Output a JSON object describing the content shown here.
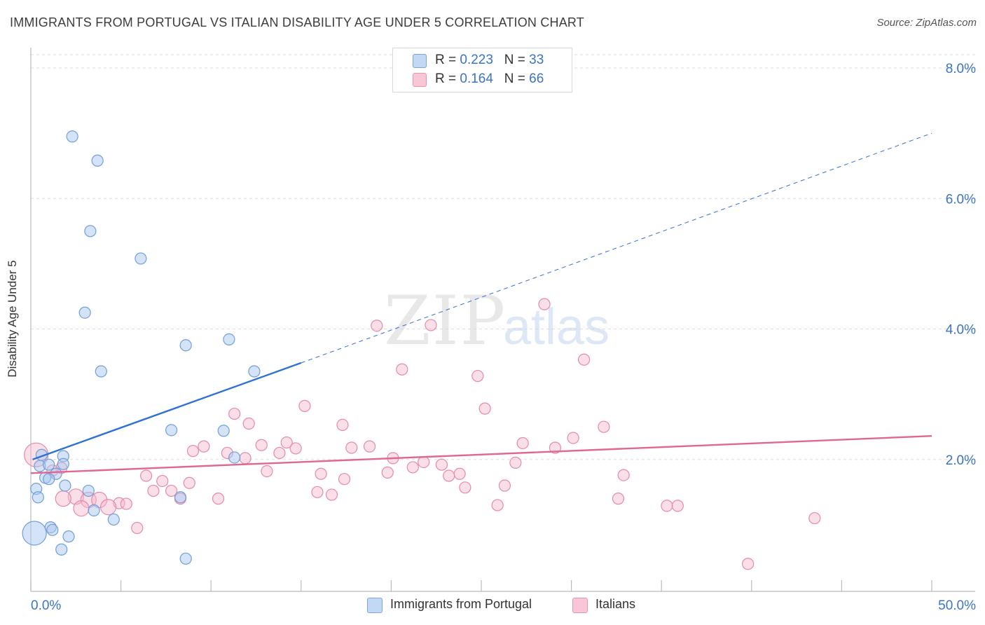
{
  "header": {
    "title": "IMMIGRANTS FROM PORTUGAL VS ITALIAN DISABILITY AGE UNDER 5 CORRELATION CHART",
    "source": "Source: ZipAtlas.com"
  },
  "watermark": {
    "zip": "ZIP",
    "atlas": "atlas"
  },
  "legend_top": {
    "rows": [
      {
        "r_label": "R = ",
        "r_value": "0.223",
        "n_label": "N = ",
        "n_value": "33"
      },
      {
        "r_label": "R = ",
        "r_value": "0.164",
        "n_label": "N = ",
        "n_value": "66"
      }
    ]
  },
  "legend_bottom": {
    "items": [
      {
        "label": "Immigrants from Portugal"
      },
      {
        "label": "Italians"
      }
    ]
  },
  "colors": {
    "blue_fill": "#aac8f0",
    "blue_stroke": "#6f9fd8",
    "blue_line": "#2f72d4",
    "pink_fill": "#f7b8cc",
    "pink_stroke": "#e58aa8",
    "pink_line": "#e06890",
    "tick_text": "#3a74c4",
    "grid": "#dddddd"
  },
  "chart_data": {
    "type": "scatter",
    "title": "IMMIGRANTS FROM PORTUGAL VS ITALIAN DISABILITY AGE UNDER 5 CORRELATION CHART",
    "xlabel": "",
    "ylabel": "Disability Age Under 5",
    "xlim": [
      0,
      50
    ],
    "ylim": [
      0,
      8.4
    ],
    "x_tick_labels": [
      "0.0%",
      "50.0%"
    ],
    "y_ticks": [
      2,
      4,
      6,
      8
    ],
    "y_tick_labels": [
      "2.0%",
      "4.0%",
      "6.0%",
      "8.0%"
    ],
    "grid": true,
    "legend_position": "top-center",
    "series": [
      {
        "name": "Immigrants from Portugal",
        "stats": {
          "R": 0.223,
          "N": 33
        },
        "trend": {
          "x0": 0.1,
          "y0": 2.0,
          "x1": 15.0,
          "y1": 3.48,
          "dashed_to_x": 50,
          "dashed_to_y": 7.0
        },
        "points": [
          {
            "x": 2.3,
            "y": 6.95
          },
          {
            "x": 3.7,
            "y": 6.58
          },
          {
            "x": 3.3,
            "y": 5.5
          },
          {
            "x": 6.1,
            "y": 5.08
          },
          {
            "x": 3.0,
            "y": 4.25
          },
          {
            "x": 8.6,
            "y": 3.75
          },
          {
            "x": 11.0,
            "y": 3.84
          },
          {
            "x": 3.9,
            "y": 3.35
          },
          {
            "x": 12.4,
            "y": 3.35
          },
          {
            "x": 7.8,
            "y": 2.45
          },
          {
            "x": 10.7,
            "y": 2.44
          },
          {
            "x": 0.6,
            "y": 2.07
          },
          {
            "x": 1.8,
            "y": 2.05
          },
          {
            "x": 11.3,
            "y": 2.03
          },
          {
            "x": 0.5,
            "y": 1.9
          },
          {
            "x": 1.0,
            "y": 1.92
          },
          {
            "x": 1.8,
            "y": 1.93
          },
          {
            "x": 0.8,
            "y": 1.72
          },
          {
            "x": 1.4,
            "y": 1.78
          },
          {
            "x": 1.9,
            "y": 1.6
          },
          {
            "x": 0.3,
            "y": 1.55
          },
          {
            "x": 3.2,
            "y": 1.52
          },
          {
            "x": 0.4,
            "y": 1.42
          },
          {
            "x": 8.3,
            "y": 1.42
          },
          {
            "x": 3.5,
            "y": 1.22
          },
          {
            "x": 4.6,
            "y": 1.08
          },
          {
            "x": 1.1,
            "y": 0.96
          },
          {
            "x": 1.2,
            "y": 0.92
          },
          {
            "x": 0.2,
            "y": 0.87,
            "size": "large"
          },
          {
            "x": 2.1,
            "y": 0.82
          },
          {
            "x": 1.7,
            "y": 0.62
          },
          {
            "x": 8.6,
            "y": 0.48
          },
          {
            "x": 1.0,
            "y": 1.7
          }
        ]
      },
      {
        "name": "Italians",
        "stats": {
          "R": 0.164,
          "N": 66
        },
        "trend": {
          "x0": 0.0,
          "y0": 1.79,
          "x1": 50.0,
          "y1": 2.36
        },
        "points": [
          {
            "x": 28.5,
            "y": 4.38
          },
          {
            "x": 19.2,
            "y": 4.05
          },
          {
            "x": 22.2,
            "y": 4.06
          },
          {
            "x": 30.7,
            "y": 3.53
          },
          {
            "x": 20.6,
            "y": 3.38
          },
          {
            "x": 24.8,
            "y": 3.28
          },
          {
            "x": 15.2,
            "y": 2.82
          },
          {
            "x": 25.2,
            "y": 2.78
          },
          {
            "x": 11.3,
            "y": 2.7
          },
          {
            "x": 12.1,
            "y": 2.55
          },
          {
            "x": 17.3,
            "y": 2.53
          },
          {
            "x": 31.8,
            "y": 2.5
          },
          {
            "x": 30.1,
            "y": 2.33
          },
          {
            "x": 27.3,
            "y": 2.25
          },
          {
            "x": 14.2,
            "y": 2.26
          },
          {
            "x": 12.8,
            "y": 2.22
          },
          {
            "x": 9.6,
            "y": 2.2
          },
          {
            "x": 18.8,
            "y": 2.2
          },
          {
            "x": 17.8,
            "y": 2.18
          },
          {
            "x": 14.7,
            "y": 2.17
          },
          {
            "x": 29.1,
            "y": 2.18
          },
          {
            "x": 9.0,
            "y": 2.13
          },
          {
            "x": 10.9,
            "y": 2.1
          },
          {
            "x": 13.8,
            "y": 2.1
          },
          {
            "x": 0.3,
            "y": 2.07,
            "size": "large"
          },
          {
            "x": 11.9,
            "y": 2.02
          },
          {
            "x": 20.1,
            "y": 2.02
          },
          {
            "x": 21.8,
            "y": 1.96
          },
          {
            "x": 26.9,
            "y": 1.95
          },
          {
            "x": 22.8,
            "y": 1.92
          },
          {
            "x": 21.2,
            "y": 1.88
          },
          {
            "x": 1.7,
            "y": 1.87
          },
          {
            "x": 13.1,
            "y": 1.82
          },
          {
            "x": 19.8,
            "y": 1.8
          },
          {
            "x": 16.1,
            "y": 1.78
          },
          {
            "x": 23.8,
            "y": 1.78
          },
          {
            "x": 23.2,
            "y": 1.75
          },
          {
            "x": 6.4,
            "y": 1.75
          },
          {
            "x": 32.9,
            "y": 1.76
          },
          {
            "x": 17.4,
            "y": 1.7
          },
          {
            "x": 7.3,
            "y": 1.67
          },
          {
            "x": 8.8,
            "y": 1.64
          },
          {
            "x": 26.3,
            "y": 1.6
          },
          {
            "x": 24.1,
            "y": 1.57
          },
          {
            "x": 6.8,
            "y": 1.52
          },
          {
            "x": 7.8,
            "y": 1.52
          },
          {
            "x": 15.9,
            "y": 1.5
          },
          {
            "x": 16.7,
            "y": 1.46
          },
          {
            "x": 2.5,
            "y": 1.43,
            "size": "medium"
          },
          {
            "x": 3.2,
            "y": 1.38,
            "size": "medium"
          },
          {
            "x": 3.8,
            "y": 1.38,
            "size": "medium"
          },
          {
            "x": 1.8,
            "y": 1.4,
            "size": "medium"
          },
          {
            "x": 8.3,
            "y": 1.4
          },
          {
            "x": 10.4,
            "y": 1.4
          },
          {
            "x": 32.6,
            "y": 1.4
          },
          {
            "x": 4.9,
            "y": 1.33
          },
          {
            "x": 5.3,
            "y": 1.32
          },
          {
            "x": 4.3,
            "y": 1.27,
            "size": "medium"
          },
          {
            "x": 25.9,
            "y": 1.3
          },
          {
            "x": 35.3,
            "y": 1.29
          },
          {
            "x": 35.9,
            "y": 1.29
          },
          {
            "x": 2.8,
            "y": 1.25,
            "size": "medium"
          },
          {
            "x": 5.9,
            "y": 0.95
          },
          {
            "x": 43.5,
            "y": 1.1
          },
          {
            "x": 39.8,
            "y": 0.4
          },
          {
            "x": 1.2,
            "y": 1.83
          }
        ]
      }
    ]
  }
}
